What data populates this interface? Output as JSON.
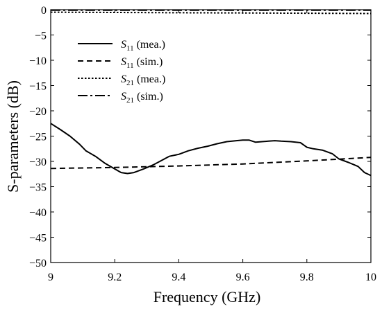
{
  "chart_data": {
    "type": "line",
    "xlabel": "Frequency (GHz)",
    "ylabel": "S-parameters (dB)",
    "xlim": [
      9,
      10
    ],
    "ylim": [
      -50,
      0
    ],
    "xticks": [
      "9",
      "9.2",
      "9.4",
      "9.6",
      "9.8",
      "10"
    ],
    "yticks": [
      "0",
      "−5",
      "−10",
      "−15",
      "−20",
      "−25",
      "−30",
      "−35",
      "−40",
      "−45",
      "−50"
    ],
    "grid": false,
    "legend_position": "upper-left",
    "series": [
      {
        "name": "S11 (mea.)",
        "legend_symbol": "S",
        "legend_sub": "11",
        "legend_suffix": "(mea.)",
        "style": "solid",
        "x": [
          9.0,
          9.03,
          9.06,
          9.09,
          9.11,
          9.14,
          9.17,
          9.2,
          9.22,
          9.24,
          9.26,
          9.29,
          9.32,
          9.35,
          9.37,
          9.4,
          9.43,
          9.46,
          9.49,
          9.52,
          9.55,
          9.58,
          9.6,
          9.62,
          9.64,
          9.66,
          9.68,
          9.7,
          9.72,
          9.75,
          9.78,
          9.8,
          9.82,
          9.85,
          9.88,
          9.9,
          9.93,
          9.96,
          9.98,
          10.0
        ],
        "y": [
          -22.5,
          -23.7,
          -25.0,
          -26.6,
          -27.9,
          -29.0,
          -30.4,
          -31.5,
          -32.2,
          -32.4,
          -32.2,
          -31.5,
          -30.7,
          -29.7,
          -29.0,
          -28.6,
          -27.9,
          -27.4,
          -27.0,
          -26.5,
          -26.1,
          -25.9,
          -25.8,
          -25.8,
          -26.2,
          -26.1,
          -26.0,
          -25.9,
          -26.0,
          -26.1,
          -26.3,
          -27.2,
          -27.5,
          -27.8,
          -28.5,
          -29.5,
          -30.2,
          -31.0,
          -32.2,
          -32.8
        ]
      },
      {
        "name": "S11 (sim.)",
        "legend_symbol": "S",
        "legend_sub": "11",
        "legend_suffix": "(sim.)",
        "style": "dashed",
        "x": [
          9.0,
          9.2,
          9.4,
          9.6,
          9.8,
          10.0
        ],
        "y": [
          -31.4,
          -31.2,
          -30.9,
          -30.5,
          -29.9,
          -29.2
        ]
      },
      {
        "name": "S21 (mea.)",
        "legend_symbol": "S",
        "legend_sub": "21",
        "legend_suffix": "(mea.)",
        "style": "dotted",
        "x": [
          9.0,
          9.2,
          9.4,
          9.6,
          9.8,
          10.0
        ],
        "y": [
          -0.5,
          -0.55,
          -0.6,
          -0.65,
          -0.7,
          -0.75
        ]
      },
      {
        "name": "S21 (sim.)",
        "legend_symbol": "S",
        "legend_sub": "21",
        "legend_suffix": "(sim.)",
        "style": "dashdot",
        "x": [
          9.0,
          9.2,
          9.4,
          9.6,
          9.8,
          10.0
        ],
        "y": [
          -0.1,
          -0.1,
          -0.1,
          -0.1,
          -0.1,
          -0.1
        ]
      }
    ]
  }
}
